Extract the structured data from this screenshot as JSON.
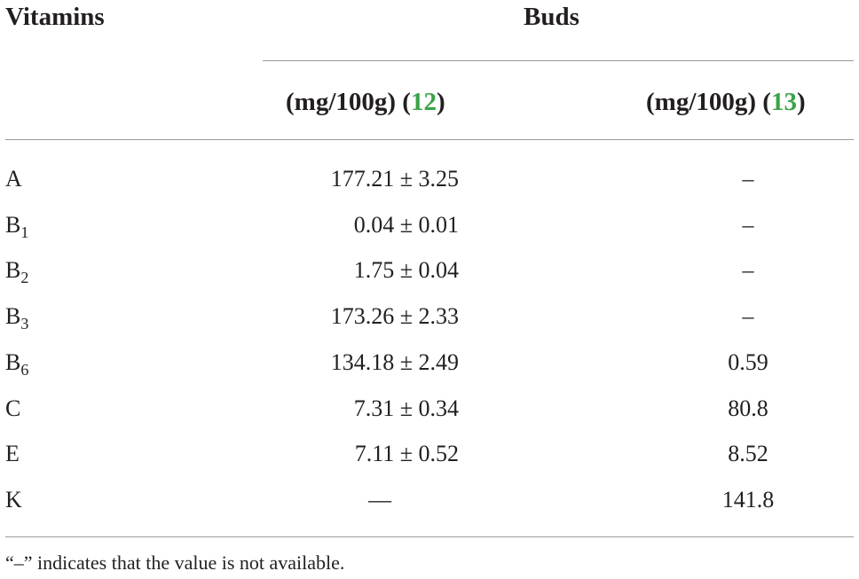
{
  "header": {
    "row_label": "Vitamins",
    "group": "Buds",
    "columns": [
      [
        "(mg/100g) (",
        "12",
        ")"
      ],
      [
        "(mg/100g) (",
        "13",
        ")"
      ]
    ]
  },
  "table": {
    "rows": [
      [
        {
          "name": "A"
        },
        "177.21 ± 3.25",
        "–"
      ],
      [
        {
          "name": "B",
          "subscript": "1"
        },
        "0.04 ± 0.01",
        "–"
      ],
      [
        {
          "name": "B",
          "subscript": "2"
        },
        "1.75 ± 0.04",
        "–"
      ],
      [
        {
          "name": "B",
          "subscript": "3"
        },
        "173.26 ± 2.33",
        "–"
      ],
      [
        {
          "name": "B",
          "subscript": "6"
        },
        "134.18 ± 2.49",
        "0.59"
      ],
      [
        {
          "name": "C"
        },
        "7.31 ± 0.34",
        "80.8"
      ],
      [
        {
          "name": "E"
        },
        "7.11 ± 0.52",
        "8.52"
      ],
      [
        {
          "name": "K"
        },
        "—",
        "141.8"
      ]
    ]
  },
  "footnote": "“–” indicates that the value is not available."
}
